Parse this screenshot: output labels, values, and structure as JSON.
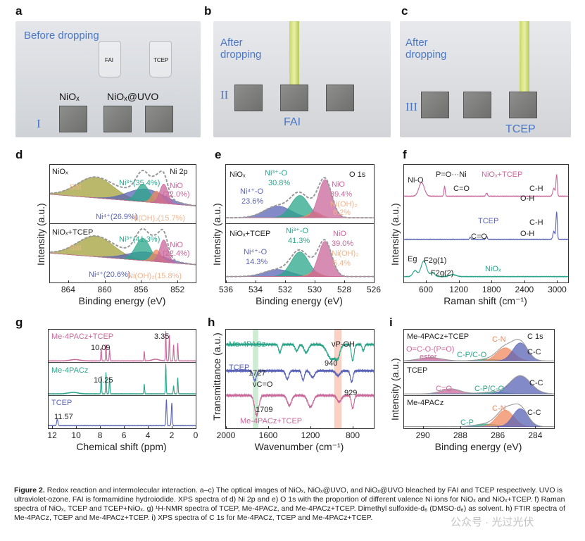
{
  "panels": {
    "a": "a",
    "b": "b",
    "c": "c",
    "d": "d",
    "e": "e",
    "f": "f",
    "g": "g",
    "h": "h",
    "i": "i"
  },
  "photos": {
    "a": {
      "text": "Before dropping",
      "roman": "I",
      "chip1": "NiOₓ",
      "chip2": "NiOₓ@UVO",
      "vial1": "FAI",
      "vial2": "TCEP"
    },
    "b": {
      "text": "After dropping",
      "roman": "II",
      "label": "FAI"
    },
    "c": {
      "text": "After dropping",
      "roman": "III",
      "label": "TCEP"
    }
  },
  "colors": {
    "teal": "#2aa58a",
    "blue": "#5a63b5",
    "pink": "#c9679a",
    "orange": "#f08a5d",
    "olive": "#a3a03a",
    "peach": "#f0b48e",
    "gray": "#8a8a8a"
  },
  "chart_data": [
    {
      "id": "d",
      "type": "line",
      "xlabel": "Binding energy (eV)",
      "ylabel": "Intensity (a.u.)",
      "xlim": [
        866,
        850
      ],
      "ylim": [
        0,
        2
      ],
      "xticks": [
        864,
        860,
        856,
        852
      ],
      "dividers": [
        1
      ],
      "annotations": [
        "NiOₓ",
        "Ni 2p",
        "Sat",
        "Ni³⁺(35.4%)",
        "NiO",
        "(22.0%)",
        "Ni⁴⁺(26.9%)",
        "Ni(OH)₂(15.7%)",
        "NiOₓ+TCEP",
        "Sat",
        "Ni³⁺(41.3%)",
        "NiO",
        "(22.4%)",
        "Ni⁴⁺(20.6%)",
        "Ni(OH)₂(15.8%)"
      ],
      "series": [
        {
          "name": "NiOₓ",
          "base": 1.3,
          "slope": 0.2,
          "envelope": "dashed",
          "peaks": [
            {
              "c": 861,
              "h": 0.35,
              "w": 2.0,
              "color": "olive"
            },
            {
              "c": 855.5,
              "h": 0.22,
              "w": 2.0,
              "color": "blue"
            },
            {
              "c": 855.8,
              "h": 0.3,
              "w": 0.7,
              "color": "teal"
            },
            {
              "c": 854.3,
              "h": 0.2,
              "w": 0.5,
              "color": "orange"
            },
            {
              "c": 853.5,
              "h": 0.33,
              "w": 0.45,
              "color": "pink"
            }
          ]
        },
        {
          "name": "NiOₓ+TCEP",
          "base": 0.3,
          "slope": 0.2,
          "envelope": "dashed",
          "peaks": [
            {
              "c": 861,
              "h": 0.35,
              "w": 2.0,
              "color": "olive"
            },
            {
              "c": 855.5,
              "h": 0.15,
              "w": 2.0,
              "color": "blue"
            },
            {
              "c": 855.8,
              "h": 0.38,
              "w": 0.8,
              "color": "teal"
            },
            {
              "c": 854.3,
              "h": 0.2,
              "w": 0.5,
              "color": "orange"
            },
            {
              "c": 853.5,
              "h": 0.38,
              "w": 0.45,
              "color": "pink"
            }
          ]
        }
      ]
    },
    {
      "id": "e",
      "type": "line",
      "xlabel": "Binding energy (eV)",
      "ylabel": "Intensity (a.u.)",
      "xlim": [
        536,
        526
      ],
      "ylim": [
        0,
        2
      ],
      "xticks": [
        536,
        534,
        532,
        530,
        528,
        526
      ],
      "dividers": [
        1
      ],
      "annotations": [
        "NiOₓ",
        "O 1s",
        "Ni³⁺-O",
        "30.8%",
        "Ni⁴⁺-O",
        "23.6%",
        "NiO",
        "39.4%",
        "Ni(OH)₂",
        "6.2%",
        "NiOₓ+TCEP",
        "Ni³⁺-O",
        "41.3%",
        "Ni⁴⁺-O",
        "14.3%",
        "NiO",
        "39.0%",
        "Ni(OH)₂",
        "5.4%"
      ],
      "series": [
        {
          "name": "NiOₓ",
          "base": 1.1,
          "slope": 0,
          "envelope": "dashed",
          "peaks": [
            {
              "c": 532.5,
              "h": 0.2,
              "w": 0.9,
              "color": "blue"
            },
            {
              "c": 531,
              "h": 0.38,
              "w": 0.6,
              "color": "teal"
            },
            {
              "c": 530,
              "h": 0.1,
              "w": 0.4,
              "color": "orange"
            },
            {
              "c": 529.3,
              "h": 0.65,
              "w": 0.45,
              "color": "pink"
            }
          ]
        },
        {
          "name": "NiOₓ+TCEP",
          "base": 0.1,
          "slope": 0,
          "envelope": "dashed",
          "peaks": [
            {
              "c": 532.5,
              "h": 0.12,
              "w": 0.9,
              "color": "blue"
            },
            {
              "c": 531,
              "h": 0.42,
              "w": 0.6,
              "color": "teal"
            },
            {
              "c": 530,
              "h": 0.08,
              "w": 0.4,
              "color": "orange"
            },
            {
              "c": 529.3,
              "h": 0.6,
              "w": 0.45,
              "color": "pink"
            }
          ]
        }
      ]
    },
    {
      "id": "f",
      "type": "line",
      "xlabel": "Raman shift (cm⁻¹)",
      "ylabel": "Intensity (a.u.)",
      "xlim": [
        200,
        3200
      ],
      "ylim": [
        0,
        3
      ],
      "xticks": [
        600,
        1200,
        1800,
        2400,
        3000
      ],
      "dividers": [],
      "annotations": [
        "Ni-O",
        "P=O···Ni",
        "NiOₓ+TCEP",
        "C=O",
        "C-H",
        "O-H",
        "TCEP",
        "C-H",
        "C=O",
        "O-H",
        "Eg",
        "F2g(1)",
        "F2g(2)",
        "NiOₓ"
      ],
      "series": [
        {
          "name": "NiOₓ+TCEP",
          "base": 2.2,
          "color": "pink",
          "peaks": [
            {
              "c": 520,
              "h": 0.35,
              "w": 50
            },
            {
              "c": 940,
              "h": 0.25,
              "w": 12
            },
            {
              "c": 1710,
              "h": 0.08,
              "w": 15
            },
            {
              "c": 2940,
              "h": 0.2,
              "w": 20
            },
            {
              "c": 2990,
              "h": 0.55,
              "w": 12
            }
          ]
        },
        {
          "name": "TCEP",
          "base": 1.1,
          "color": "blue",
          "peaks": [
            {
              "c": 1410,
              "h": 0.06,
              "w": 10
            },
            {
              "c": 1710,
              "h": 0.08,
              "w": 12
            },
            {
              "c": 2940,
              "h": 0.2,
              "w": 18
            },
            {
              "c": 2990,
              "h": 0.7,
              "w": 12
            }
          ]
        },
        {
          "name": "NiOₓ",
          "base": 0.15,
          "color": "teal",
          "peaks": [
            {
              "c": 400,
              "h": 0.15,
              "w": 40
            },
            {
              "c": 560,
              "h": 0.4,
              "w": 50
            },
            {
              "c": 720,
              "h": 0.1,
              "w": 40
            },
            {
              "c": 1090,
              "h": 0.05,
              "w": 60
            }
          ]
        }
      ]
    },
    {
      "id": "g",
      "type": "line",
      "xlabel": "Chemical shift (ppm)",
      "ylabel": "",
      "xlim": [
        12.3,
        0
      ],
      "ylim": [
        0,
        3
      ],
      "xticks": [
        12,
        10,
        8,
        6,
        4,
        2,
        0
      ],
      "dividers": [
        1,
        2
      ],
      "annotations": [
        "Me-4PACz+TCEP",
        "3.35",
        "10.09",
        "Me-4PACz",
        "10.25",
        "TCEP",
        "11.57"
      ],
      "series": [
        {
          "name": "Me-4PACz+TCEP",
          "base": 2.05,
          "color": "pink",
          "peaks": [
            {
              "c": 10.09,
              "h": 0.04,
              "w": 0.4
            },
            {
              "c": 7.9,
              "h": 0.4,
              "w": 0.03
            },
            {
              "c": 7.5,
              "h": 0.5,
              "w": 0.03
            },
            {
              "c": 7.2,
              "h": 0.35,
              "w": 0.03
            },
            {
              "c": 4.3,
              "h": 0.3,
              "w": 0.03
            },
            {
              "c": 3.35,
              "h": 0.05,
              "w": 0.3
            },
            {
              "c": 2.5,
              "h": 0.9,
              "w": 0.03
            },
            {
              "c": 2.2,
              "h": 0.8,
              "w": 0.03
            },
            {
              "c": 1.85,
              "h": 0.5,
              "w": 0.03
            },
            {
              "c": 1.5,
              "h": 0.55,
              "w": 0.03
            }
          ]
        },
        {
          "name": "Me-4PACz",
          "base": 1.05,
          "color": "teal",
          "peaks": [
            {
              "c": 10.25,
              "h": 0.04,
              "w": 0.4
            },
            {
              "c": 7.9,
              "h": 0.55,
              "w": 0.03
            },
            {
              "c": 7.5,
              "h": 0.65,
              "w": 0.03
            },
            {
              "c": 7.2,
              "h": 0.5,
              "w": 0.03
            },
            {
              "c": 4.3,
              "h": 0.3,
              "w": 0.03
            },
            {
              "c": 2.5,
              "h": 0.9,
              "w": 0.03
            },
            {
              "c": 1.85,
              "h": 0.25,
              "w": 0.03
            },
            {
              "c": 1.5,
              "h": 0.5,
              "w": 0.03
            }
          ]
        },
        {
          "name": "TCEP",
          "base": 0.08,
          "color": "blue",
          "peaks": [
            {
              "c": 11.57,
              "h": 0.2,
              "w": 0.05
            },
            {
              "c": 2.45,
              "h": 0.8,
              "w": 0.04
            },
            {
              "c": 2.0,
              "h": 0.7,
              "w": 0.04
            }
          ]
        }
      ]
    },
    {
      "id": "h",
      "type": "line",
      "xlabel": "Wavenumber (cm⁻¹)",
      "ylabel": "Transmittance (a.u.)",
      "xlim": [
        2000,
        600
      ],
      "ylim": [
        0,
        3
      ],
      "xticks": [
        2000,
        1600,
        1200,
        800
      ],
      "dividers": [],
      "bands": [
        {
          "c": 1720,
          "w": 50,
          "color": "#bfe6c8"
        },
        {
          "c": 940,
          "w": 70,
          "color": "#f7c4b4"
        }
      ],
      "annotations": [
        "Me-4PACz",
        "νP-OH",
        "940",
        "TCEP",
        "1727",
        "νC=O",
        "929",
        "1709",
        "Me-4PACz+TCEP"
      ],
      "series": [
        {
          "name": "Me-4PACz",
          "base": 2.55,
          "color": "teal",
          "peaks": [
            {
              "c": 1490,
              "h": -0.25,
              "w": 12
            },
            {
              "c": 1330,
              "h": -0.2,
              "w": 15
            },
            {
              "c": 1240,
              "h": -0.25,
              "w": 20
            },
            {
              "c": 1000,
              "h": -0.45,
              "w": 40
            },
            {
              "c": 940,
              "h": -0.3,
              "w": 20
            },
            {
              "c": 800,
              "h": -0.5,
              "w": 12
            },
            {
              "c": 700,
              "h": -0.2,
              "w": 10
            }
          ]
        },
        {
          "name": "TCEP",
          "base": 1.75,
          "color": "blue",
          "peaks": [
            {
              "c": 1727,
              "h": -0.3,
              "w": 15
            },
            {
              "c": 1420,
              "h": -0.25,
              "w": 15
            },
            {
              "c": 1270,
              "h": -0.3,
              "w": 12
            },
            {
              "c": 1180,
              "h": -0.2,
              "w": 20
            },
            {
              "c": 940,
              "h": -0.15,
              "w": 20
            },
            {
              "c": 810,
              "h": -0.35,
              "w": 12
            }
          ]
        },
        {
          "name": "Me-4PACz+TCEP",
          "base": 1.0,
          "color": "pink",
          "peaks": [
            {
              "c": 1709,
              "h": -0.6,
              "w": 20
            },
            {
              "c": 1400,
              "h": -0.3,
              "w": 20
            },
            {
              "c": 1200,
              "h": -0.35,
              "w": 25
            },
            {
              "c": 929,
              "h": -0.2,
              "w": 20
            },
            {
              "c": 800,
              "h": -0.4,
              "w": 12
            }
          ]
        }
      ]
    },
    {
      "id": "i",
      "type": "line",
      "xlabel": "Binding energy (eV)",
      "ylabel": "Intensity (a.u.)",
      "xlim": [
        291,
        283
      ],
      "ylim": [
        0,
        3
      ],
      "xticks": [
        290,
        288,
        286,
        284
      ],
      "dividers": [
        1,
        2
      ],
      "annotations": [
        "Me-4PACz+TCEP",
        "C 1s",
        "O=C-O-(P=O)",
        "ester",
        "C-N",
        "C-P/C-O",
        "C-C",
        "TCEP",
        "C=O",
        "C-P/C-O",
        "C-C",
        "Me-4PACz",
        "C-N",
        "C-P",
        "C-C"
      ],
      "series": [
        {
          "name": "Me-4PACz+TCEP",
          "base": 2.05,
          "envelope": "solid",
          "peaks": [
            {
              "c": 289.6,
              "h": 0.1,
              "w": 0.6,
              "color": "pink"
            },
            {
              "c": 286.5,
              "h": 0.05,
              "w": 0.6,
              "color": "teal"
            },
            {
              "c": 285.6,
              "h": 0.4,
              "w": 0.45,
              "color": "orange"
            },
            {
              "c": 284.8,
              "h": 0.55,
              "w": 0.4,
              "color": "blue"
            }
          ]
        },
        {
          "name": "TCEP",
          "base": 1.05,
          "envelope": "solid",
          "peaks": [
            {
              "c": 288.5,
              "h": 0.15,
              "w": 0.5,
              "color": "pink"
            },
            {
              "c": 286.3,
              "h": 0.05,
              "w": 0.6,
              "color": "teal"
            },
            {
              "c": 284.8,
              "h": 0.55,
              "w": 0.55,
              "color": "blue"
            }
          ]
        },
        {
          "name": "Me-4PACz",
          "base": 0.05,
          "envelope": "solid",
          "peaks": [
            {
              "c": 286.6,
              "h": 0.08,
              "w": 0.6,
              "color": "teal"
            },
            {
              "c": 285.6,
              "h": 0.5,
              "w": 0.45,
              "color": "orange"
            },
            {
              "c": 284.8,
              "h": 0.55,
              "w": 0.4,
              "color": "blue"
            }
          ]
        }
      ]
    }
  ],
  "caption": {
    "label": "Figure 2.",
    "text": "Redox reaction and intermolecular interaction. a–c) The optical images of NiOₓ, NiOₓ@UVO, and NiOₓ@UVO bleached by FAI and TCEP respectively. UVO is ultraviolet-ozone. FAI is formamidine hydroiodide. XPS spectra of d) Ni 2p and e) O 1s with the proportion of different valence Ni ions for NiOₓ and NiOₓ+TCEP. f) Raman spectra of NiOₓ, TCEP and TCEP+NiOₓ. g) ¹H-NMR spectra of TCEP, Me-4PACz, and Me-4PACz+TCEP. Dimethyl sulfoxide-d₆ (DMSO-d₆) as solvent. h) FTIR spectra of Me-4PACz, TCEP and Me-4PACz+TCEP. i) XPS spectra of C 1s for Me-4PACz, TCEP and Me-4PACz+TCEP."
  },
  "watermark": "公众号 · 光过光伏"
}
